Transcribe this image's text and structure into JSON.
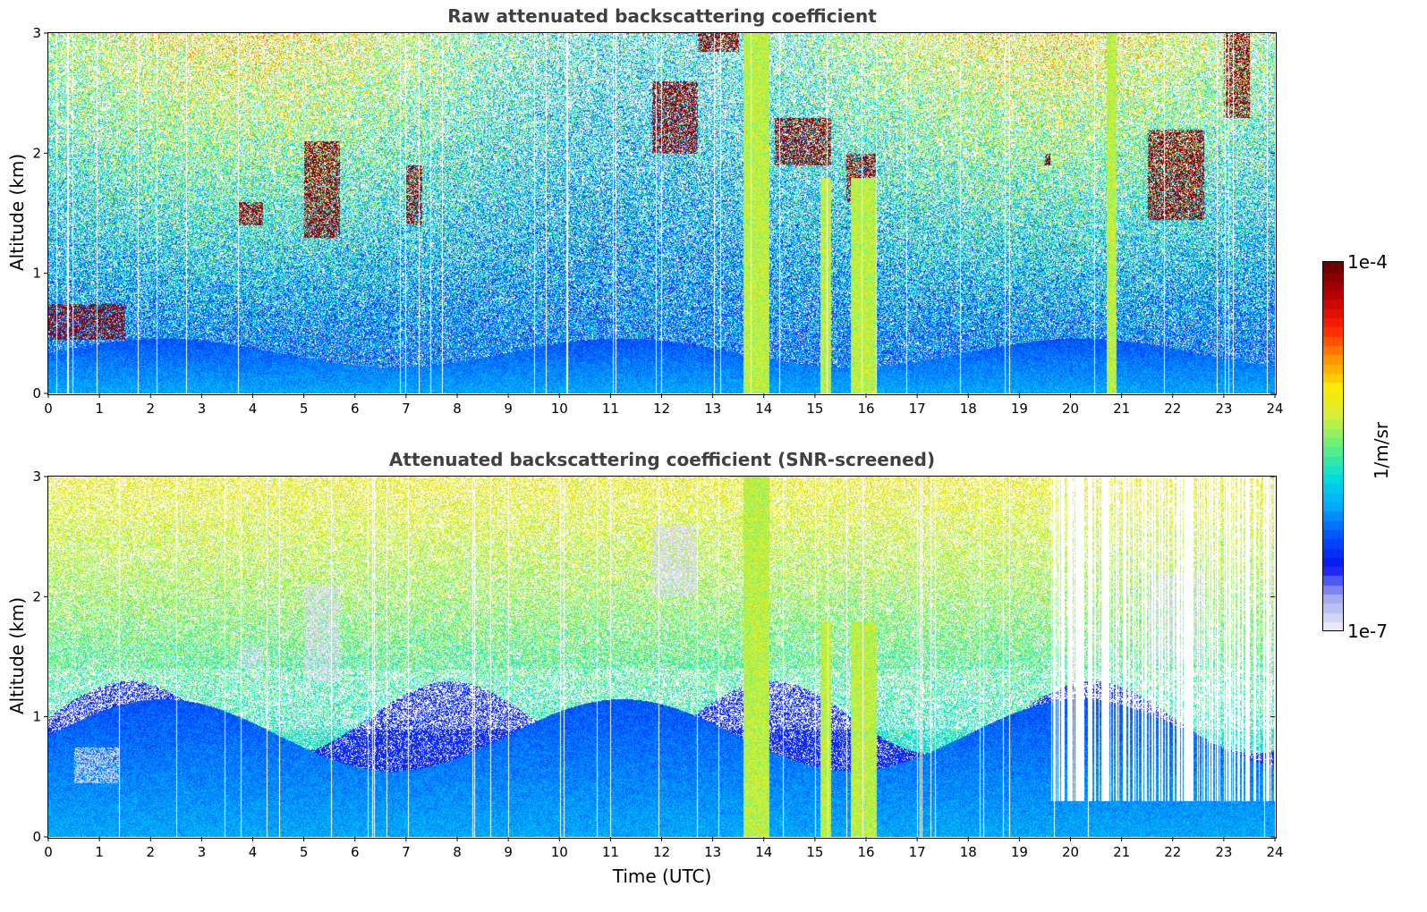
{
  "chart_data": [
    {
      "type": "heatmap",
      "title": "Raw attenuated backscattering coefficient",
      "xlabel": "",
      "ylabel": "Altitude (km)",
      "xlim": [
        0,
        24
      ],
      "ylim": [
        0,
        3
      ],
      "x_ticks": [
        "0",
        "1",
        "2",
        "3",
        "4",
        "5",
        "6",
        "7",
        "8",
        "9",
        "10",
        "11",
        "12",
        "13",
        "14",
        "15",
        "16",
        "17",
        "18",
        "19",
        "20",
        "21",
        "22",
        "23",
        "24"
      ],
      "y_ticks": [
        "0",
        "1",
        "2",
        "3"
      ],
      "x_unit": "hours UTC",
      "y_unit": "km",
      "screening": "none",
      "features": [
        {
          "kind": "boundary-layer-aerosol",
          "x_range": [
            0,
            24
          ],
          "y_top": 0.4
        },
        {
          "kind": "low-cloud",
          "x_range": [
            0.0,
            1.5
          ],
          "y_range": [
            0.45,
            0.75
          ]
        },
        {
          "kind": "cloud",
          "x_range": [
            3.7,
            4.2
          ],
          "y_range": [
            1.4,
            1.6
          ]
        },
        {
          "kind": "cloud",
          "x_range": [
            5.0,
            5.7
          ],
          "y_range": [
            1.3,
            2.1
          ]
        },
        {
          "kind": "cloud",
          "x_range": [
            7.0,
            7.3
          ],
          "y_range": [
            1.4,
            1.9
          ]
        },
        {
          "kind": "cloud",
          "x_range": [
            11.8,
            12.7
          ],
          "y_range": [
            2.0,
            2.6
          ]
        },
        {
          "kind": "cloud",
          "x_range": [
            12.7,
            13.5
          ],
          "y_range": [
            2.85,
            3.0
          ]
        },
        {
          "kind": "precipitation-column",
          "x_range": [
            13.6,
            14.1
          ],
          "y_range": [
            0,
            3
          ]
        },
        {
          "kind": "cloud",
          "x_range": [
            14.2,
            15.3
          ],
          "y_range": [
            1.9,
            2.3
          ]
        },
        {
          "kind": "precipitation-column",
          "x_range": [
            15.1,
            15.3
          ],
          "y_range": [
            0,
            1.8
          ]
        },
        {
          "kind": "cloud",
          "x_range": [
            15.6,
            16.2
          ],
          "y_range": [
            1.6,
            2.0
          ]
        },
        {
          "kind": "precipitation-column",
          "x_range": [
            15.7,
            16.2
          ],
          "y_range": [
            0,
            1.8
          ]
        },
        {
          "kind": "cloud",
          "x_range": [
            19.5,
            19.6
          ],
          "y_range": [
            1.9,
            2.0
          ]
        },
        {
          "kind": "precipitation-column",
          "x_range": [
            20.7,
            20.9
          ],
          "y_range": [
            0,
            3
          ]
        },
        {
          "kind": "cloud",
          "x_range": [
            21.5,
            22.6
          ],
          "y_range": [
            1.45,
            2.2
          ]
        },
        {
          "kind": "cloud",
          "x_range": [
            23.0,
            23.5
          ],
          "y_range": [
            2.3,
            3.0
          ]
        }
      ]
    },
    {
      "type": "heatmap",
      "title": "Attenuated backscattering coefficient (SNR-screened)",
      "xlabel": "Time (UTC)",
      "ylabel": "Altitude (km)",
      "xlim": [
        0,
        24
      ],
      "ylim": [
        0,
        3
      ],
      "x_ticks": [
        "0",
        "1",
        "2",
        "3",
        "4",
        "5",
        "6",
        "7",
        "8",
        "9",
        "10",
        "11",
        "12",
        "13",
        "14",
        "15",
        "16",
        "17",
        "18",
        "19",
        "20",
        "21",
        "22",
        "23",
        "24"
      ],
      "y_ticks": [
        "0",
        "1",
        "2",
        "3"
      ],
      "x_unit": "hours UTC",
      "y_unit": "km",
      "screening": "SNR",
      "features": [
        {
          "kind": "boundary-layer-aerosol",
          "x_range": [
            0,
            19.5
          ],
          "y_top": 1.0
        },
        {
          "kind": "low-cloud",
          "x_range": [
            0.5,
            1.4
          ],
          "y_range": [
            0.45,
            0.75
          ]
        },
        {
          "kind": "cloud",
          "x_range": [
            3.7,
            4.2
          ],
          "y_range": [
            1.4,
            1.6
          ]
        },
        {
          "kind": "cloud",
          "x_range": [
            5.0,
            5.7
          ],
          "y_range": [
            1.3,
            2.1
          ]
        },
        {
          "kind": "cloud",
          "x_range": [
            11.8,
            12.7
          ],
          "y_range": [
            2.0,
            2.6
          ]
        },
        {
          "kind": "precipitation-column",
          "x_range": [
            13.6,
            14.1
          ],
          "y_range": [
            0,
            3
          ]
        },
        {
          "kind": "precipitation-column",
          "x_range": [
            15.1,
            15.3
          ],
          "y_range": [
            0,
            1.8
          ]
        },
        {
          "kind": "precipitation-column",
          "x_range": [
            15.7,
            16.2
          ],
          "y_range": [
            0,
            1.8
          ]
        },
        {
          "kind": "screened-region",
          "x_range": [
            19.6,
            24
          ],
          "y_top": 0.3
        },
        {
          "kind": "cloud",
          "x_range": [
            21.5,
            22.6
          ],
          "y_range": [
            1.45,
            2.2
          ]
        }
      ]
    }
  ],
  "colorbar": {
    "label": "1/m/sr",
    "max_label": "1e-4",
    "min_label": "1e-7",
    "scale": "log",
    "range": [
      1e-07,
      0.0001
    ],
    "colormap": [
      "#e8e8f8",
      "#a0a8f0",
      "#0a14f0",
      "#0050ff",
      "#00a8ff",
      "#00e0e0",
      "#60f080",
      "#d0f040",
      "#ffe800",
      "#ff9000",
      "#ff2000",
      "#c00000",
      "#700000"
    ]
  }
}
